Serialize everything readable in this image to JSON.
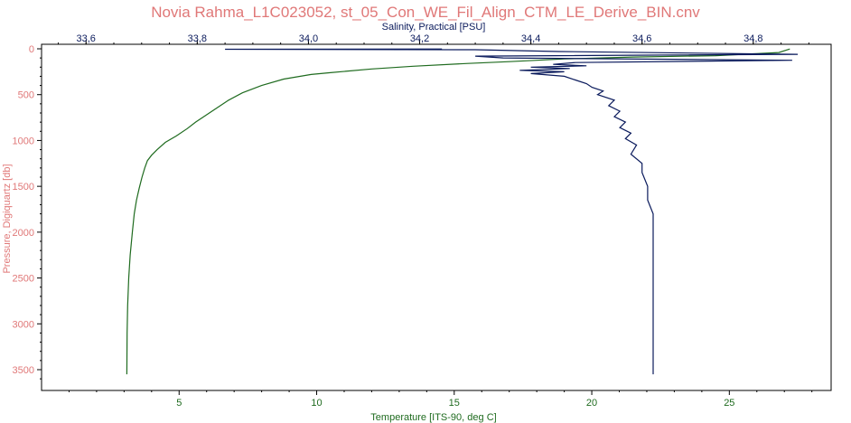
{
  "chart_data": {
    "type": "line",
    "title": "Novia Rahma_L1C023052, st_05_Con_WE_Fil_Align_CTM_LE_Derive_BIN.cnv",
    "ylabel": "Pressure, Digiquartz [db]",
    "top_axis": {
      "label": "Salinity, Practical [PSU]",
      "ticks": [
        "33,6",
        "33,8",
        "34,0",
        "34,2",
        "34,4",
        "34,6",
        "34,8"
      ],
      "tick_values": [
        33.6,
        33.8,
        34.0,
        34.2,
        34.4,
        34.6,
        34.8
      ],
      "range": [
        33.52,
        34.94
      ]
    },
    "bottom_axis": {
      "label": "Temperature [ITS-90, deg C]",
      "ticks": [
        "5",
        "10",
        "15",
        "20",
        "25"
      ],
      "tick_values": [
        5,
        10,
        15,
        20,
        25
      ],
      "range": [
        0,
        28.7
      ]
    },
    "y_axis": {
      "ticks": [
        "0",
        "500",
        "1000",
        "1500",
        "2000",
        "2500",
        "3000",
        "3500"
      ],
      "tick_values": [
        0,
        500,
        1000,
        1500,
        2000,
        2500,
        3000,
        3500
      ],
      "range": [
        0,
        3680
      ],
      "inverted": true
    },
    "series": [
      {
        "axis": "bottom",
        "color": "#1f6b1f",
        "points": [
          [
            27.2,
            2
          ],
          [
            26.8,
            40
          ],
          [
            24.5,
            75
          ],
          [
            21.5,
            90
          ],
          [
            19.0,
            110
          ],
          [
            17.0,
            140
          ],
          [
            15.5,
            160
          ],
          [
            13.5,
            190
          ],
          [
            12.0,
            220
          ],
          [
            10.5,
            260
          ],
          [
            9.8,
            280
          ],
          [
            8.8,
            330
          ],
          [
            8.0,
            400
          ],
          [
            7.3,
            480
          ],
          [
            6.8,
            560
          ],
          [
            6.4,
            640
          ],
          [
            6.0,
            720
          ],
          [
            5.6,
            800
          ],
          [
            5.3,
            870
          ],
          [
            4.9,
            950
          ],
          [
            4.5,
            1020
          ],
          [
            4.2,
            1100
          ],
          [
            4.0,
            1160
          ],
          [
            3.85,
            1220
          ],
          [
            3.75,
            1300
          ],
          [
            3.65,
            1400
          ],
          [
            3.55,
            1520
          ],
          [
            3.45,
            1650
          ],
          [
            3.37,
            1800
          ],
          [
            3.3,
            2000
          ],
          [
            3.22,
            2250
          ],
          [
            3.17,
            2500
          ],
          [
            3.13,
            2800
          ],
          [
            3.11,
            3100
          ],
          [
            3.1,
            3550
          ]
        ]
      },
      {
        "axis": "top",
        "color": "#0a1a5c",
        "points": [
          [
            34.24,
            2
          ],
          [
            33.85,
            5
          ],
          [
            34.3,
            10
          ],
          [
            34.45,
            30
          ],
          [
            34.88,
            60
          ],
          [
            34.3,
            80
          ],
          [
            34.35,
            100
          ],
          [
            34.87,
            125
          ],
          [
            34.48,
            150
          ],
          [
            34.44,
            170
          ],
          [
            34.5,
            185
          ],
          [
            34.4,
            200
          ],
          [
            34.47,
            215
          ],
          [
            34.38,
            235
          ],
          [
            34.46,
            250
          ],
          [
            34.4,
            270
          ],
          [
            34.46,
            300
          ],
          [
            34.48,
            340
          ],
          [
            34.5,
            380
          ],
          [
            34.51,
            420
          ],
          [
            34.53,
            460
          ],
          [
            34.52,
            500
          ],
          [
            34.55,
            560
          ],
          [
            34.54,
            620
          ],
          [
            34.56,
            680
          ],
          [
            34.55,
            740
          ],
          [
            34.57,
            800
          ],
          [
            34.56,
            860
          ],
          [
            34.58,
            920
          ],
          [
            34.57,
            980
          ],
          [
            34.59,
            1050
          ],
          [
            34.58,
            1150
          ],
          [
            34.6,
            1250
          ],
          [
            34.6,
            1350
          ],
          [
            34.61,
            1500
          ],
          [
            34.61,
            1650
          ],
          [
            34.62,
            1800
          ],
          [
            34.62,
            2000
          ],
          [
            34.62,
            2300
          ],
          [
            34.62,
            2600
          ],
          [
            34.62,
            3000
          ],
          [
            34.62,
            3300
          ],
          [
            34.62,
            3550
          ]
        ]
      }
    ]
  },
  "colors": {
    "title": "#e07878",
    "temperature": "#1f6b1f",
    "salinity": "#0a1a5c",
    "pressure_label": "#e07878"
  }
}
